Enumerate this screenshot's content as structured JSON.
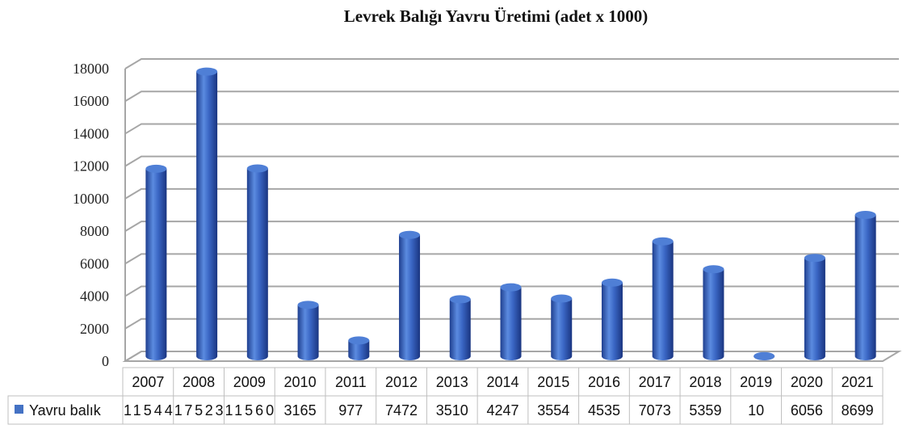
{
  "chart_data": {
    "type": "bar",
    "title": "Levrek Balığı Yavru Üretimi (adet x 1000)",
    "categories": [
      "2007",
      "2008",
      "2009",
      "2010",
      "2011",
      "2012",
      "2013",
      "2014",
      "2015",
      "2016",
      "2017",
      "2018",
      "2019",
      "2020",
      "2021"
    ],
    "series": [
      {
        "name": "Yavru balık",
        "values": [
          11544,
          17523,
          11560,
          3165,
          977,
          7472,
          3510,
          4247,
          3554,
          4535,
          7073,
          5359,
          10,
          6056,
          8699
        ],
        "color": "#4472c4"
      }
    ],
    "xlabel": "",
    "ylabel": "",
    "ylim": [
      0,
      18000
    ],
    "yticks": [
      "0",
      "2000",
      "4000",
      "6000",
      "8000",
      "10000",
      "12000",
      "14000",
      "16000",
      "18000"
    ],
    "grid": true,
    "style": "3d-cylinder",
    "legend": "data-table-below"
  }
}
